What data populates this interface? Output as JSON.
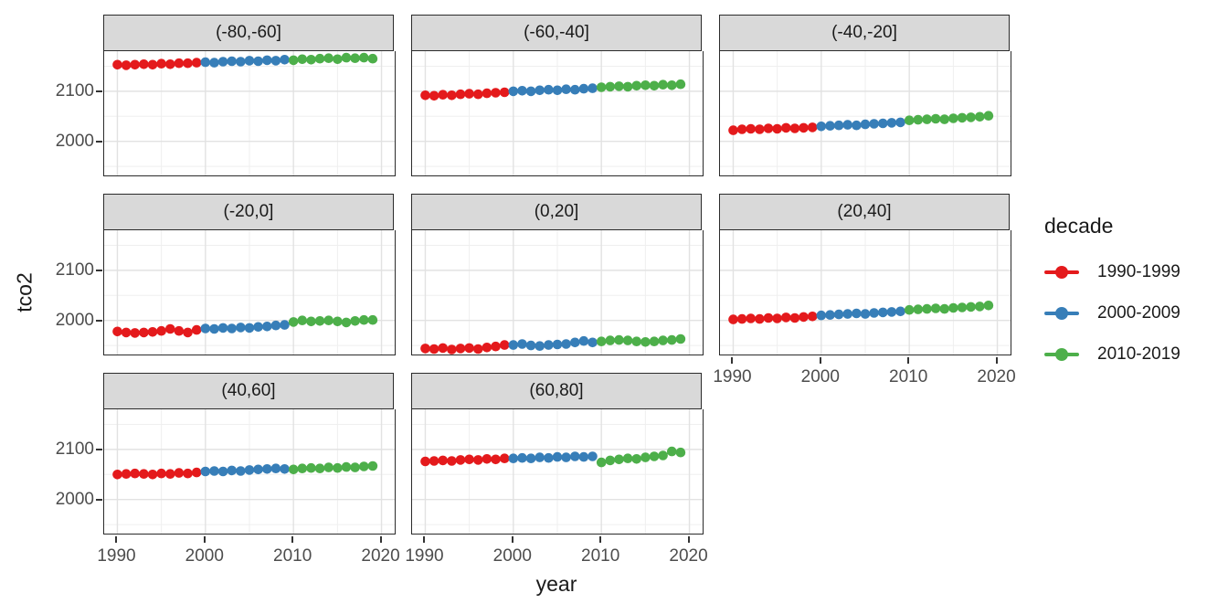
{
  "chart_data": {
    "type": "scatter",
    "title": "",
    "xlabel": "year",
    "ylabel": "tco2",
    "years": {
      "start": 1990,
      "end": 2019
    },
    "x_domain": [
      1988.5,
      2021.5
    ],
    "y_domain": [
      1932,
      2180
    ],
    "x_ticks": [
      1990,
      2000,
      2010,
      2020
    ],
    "y_ticks": [
      2000,
      2100
    ],
    "x_minor_ticks": [
      1995,
      2005,
      2015
    ],
    "y_minor_ticks": [
      1950,
      2050,
      2150
    ],
    "grid": true,
    "legend": {
      "title": "decade",
      "position": "right",
      "entries": [
        {
          "label": "1990-1999",
          "color": "#E41A1C",
          "year_range": [
            1990,
            1999
          ]
        },
        {
          "label": "2000-2009",
          "color": "#377EB8",
          "year_range": [
            2000,
            2009
          ]
        },
        {
          "label": "2010-2019",
          "color": "#4DAF4A",
          "year_range": [
            2010,
            2019
          ]
        }
      ]
    },
    "facets": [
      {
        "label": "(-80,-60]",
        "values": [
          2153,
          2152,
          2153,
          2154,
          2153,
          2155,
          2154,
          2156,
          2156,
          2157,
          2158,
          2157,
          2159,
          2160,
          2159,
          2161,
          2160,
          2162,
          2161,
          2163,
          2162,
          2164,
          2163,
          2165,
          2166,
          2164,
          2167,
          2166,
          2167,
          2165
        ]
      },
      {
        "label": "(-60,-40]",
        "values": [
          2092,
          2091,
          2093,
          2092,
          2094,
          2095,
          2094,
          2096,
          2097,
          2098,
          2100,
          2101,
          2100,
          2102,
          2103,
          2102,
          2104,
          2103,
          2105,
          2106,
          2108,
          2109,
          2110,
          2109,
          2111,
          2112,
          2111,
          2113,
          2112,
          2114
        ]
      },
      {
        "label": "(-40,-20]",
        "values": [
          2022,
          2024,
          2025,
          2024,
          2026,
          2025,
          2027,
          2026,
          2027,
          2028,
          2030,
          2031,
          2032,
          2033,
          2032,
          2034,
          2035,
          2036,
          2037,
          2038,
          2042,
          2043,
          2044,
          2045,
          2044,
          2046,
          2047,
          2048,
          2049,
          2051
        ]
      },
      {
        "label": "(-20,0]",
        "values": [
          1978,
          1976,
          1975,
          1976,
          1977,
          1979,
          1983,
          1979,
          1976,
          1981,
          1984,
          1983,
          1985,
          1984,
          1986,
          1985,
          1987,
          1988,
          1990,
          1991,
          1997,
          2000,
          1998,
          1999,
          2000,
          1998,
          1996,
          1999,
          2001,
          2001
        ]
      },
      {
        "label": "(0,20]",
        "values": [
          1944,
          1943,
          1945,
          1942,
          1944,
          1945,
          1943,
          1946,
          1948,
          1951,
          1951,
          1953,
          1950,
          1949,
          1951,
          1952,
          1953,
          1956,
          1959,
          1956,
          1958,
          1960,
          1961,
          1960,
          1958,
          1957,
          1958,
          1960,
          1961,
          1963
        ]
      },
      {
        "label": "(20,40]",
        "values": [
          2002,
          2003,
          2004,
          2003,
          2005,
          2004,
          2006,
          2005,
          2007,
          2008,
          2010,
          2011,
          2012,
          2013,
          2014,
          2013,
          2015,
          2016,
          2017,
          2018,
          2021,
          2022,
          2023,
          2024,
          2023,
          2025,
          2026,
          2027,
          2028,
          2030
        ]
      },
      {
        "label": "(40,60]",
        "values": [
          2050,
          2051,
          2052,
          2051,
          2050,
          2052,
          2051,
          2053,
          2052,
          2054,
          2056,
          2057,
          2056,
          2058,
          2057,
          2059,
          2060,
          2061,
          2062,
          2061,
          2060,
          2062,
          2063,
          2062,
          2064,
          2063,
          2065,
          2064,
          2066,
          2067
        ]
      },
      {
        "label": "(60,80]",
        "values": [
          2076,
          2077,
          2078,
          2077,
          2079,
          2080,
          2079,
          2081,
          2080,
          2082,
          2082,
          2083,
          2082,
          2084,
          2083,
          2085,
          2084,
          2086,
          2085,
          2086,
          2074,
          2078,
          2080,
          2082,
          2081,
          2084,
          2086,
          2088,
          2096,
          2094
        ]
      }
    ],
    "style": {
      "panel_border_color": "#2b2b2b",
      "strip_fill": "#d9d9d9",
      "major_grid_color": "#e2e2e2",
      "minor_grid_color": "#efefef",
      "tick_text_color": "#4d4d4d"
    }
  }
}
